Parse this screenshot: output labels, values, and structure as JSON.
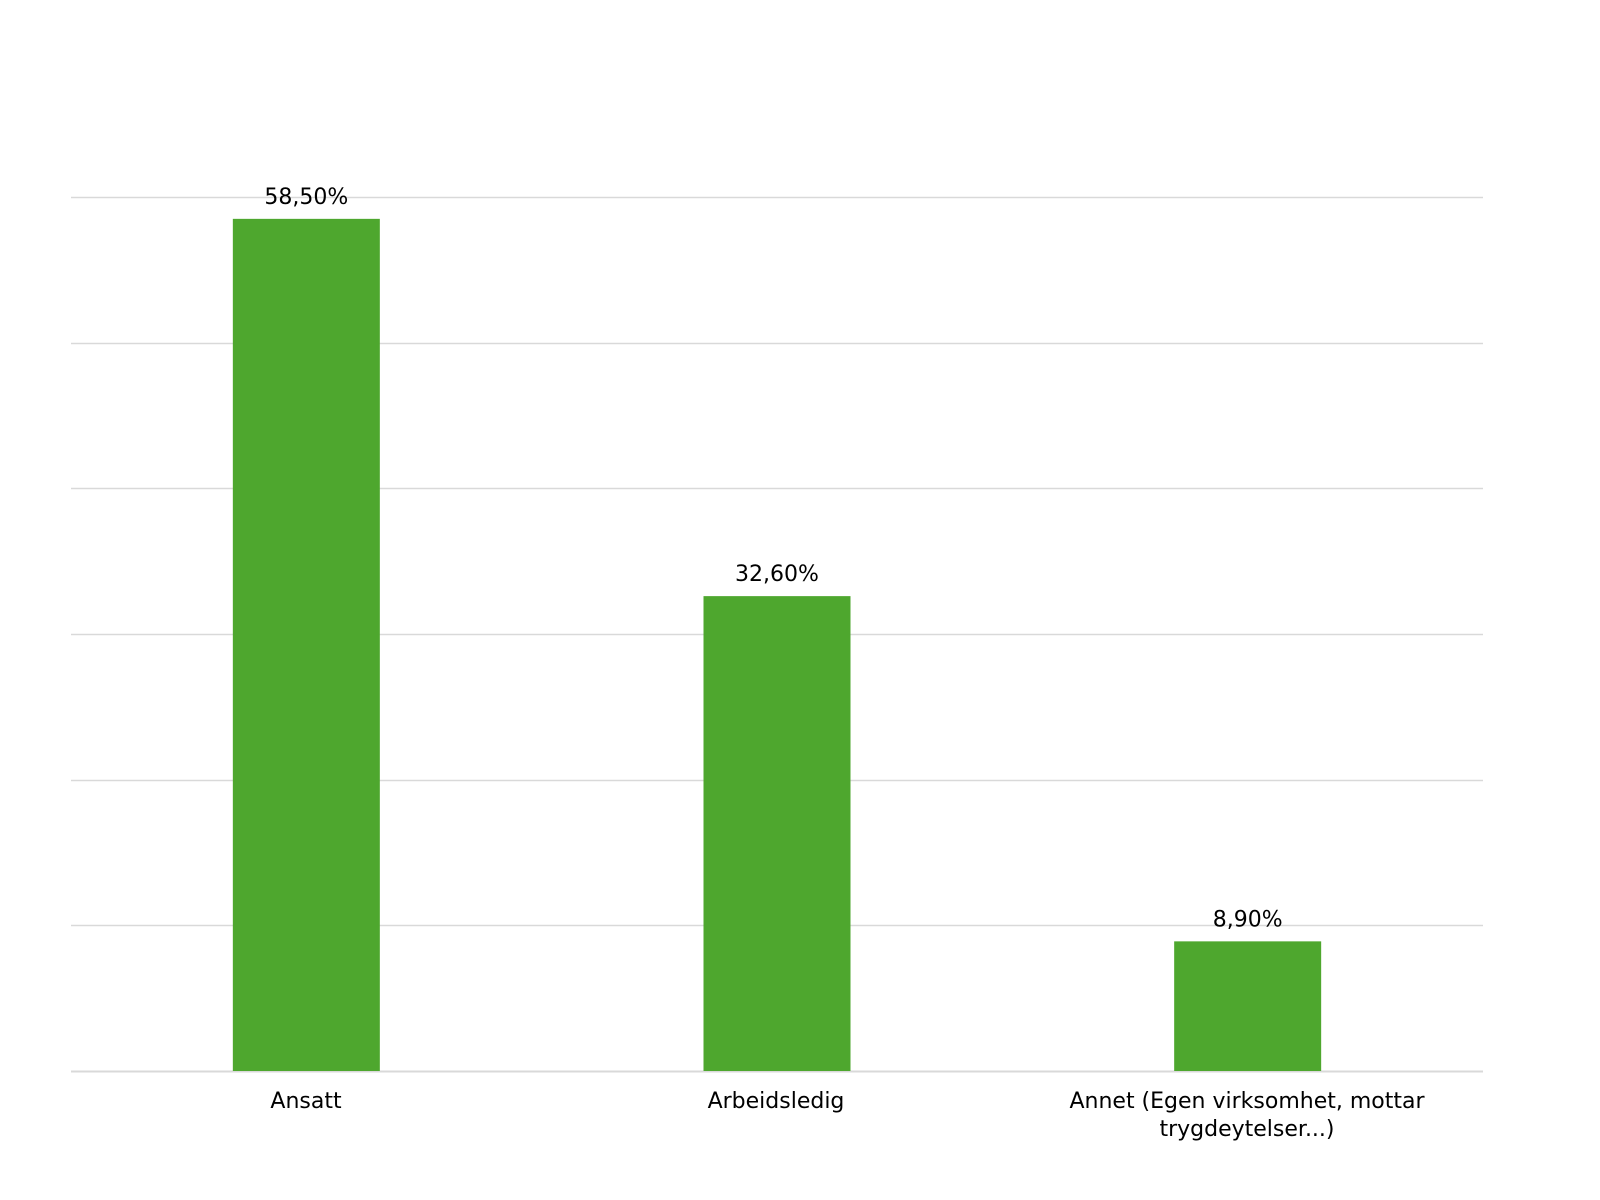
{
  "chart_data": {
    "type": "bar",
    "categories": [
      "Ansatt",
      "Arbeidsledig",
      "Annet (Egen virksomhet, mottar trygdeytelser...)"
    ],
    "values": [
      58.5,
      32.6,
      8.9
    ],
    "data_labels": [
      "58,50%",
      "32,60%",
      "8,90%"
    ],
    "ylim": [
      0,
      60
    ],
    "y_gridlines": [
      0,
      10,
      20,
      30,
      40,
      50,
      60
    ],
    "y_tick_labels_shown": false,
    "grid": true,
    "legend": "none",
    "colors": {
      "bar": "#4ea72e",
      "grid": "#d9d9d9",
      "text": "#000000"
    }
  }
}
